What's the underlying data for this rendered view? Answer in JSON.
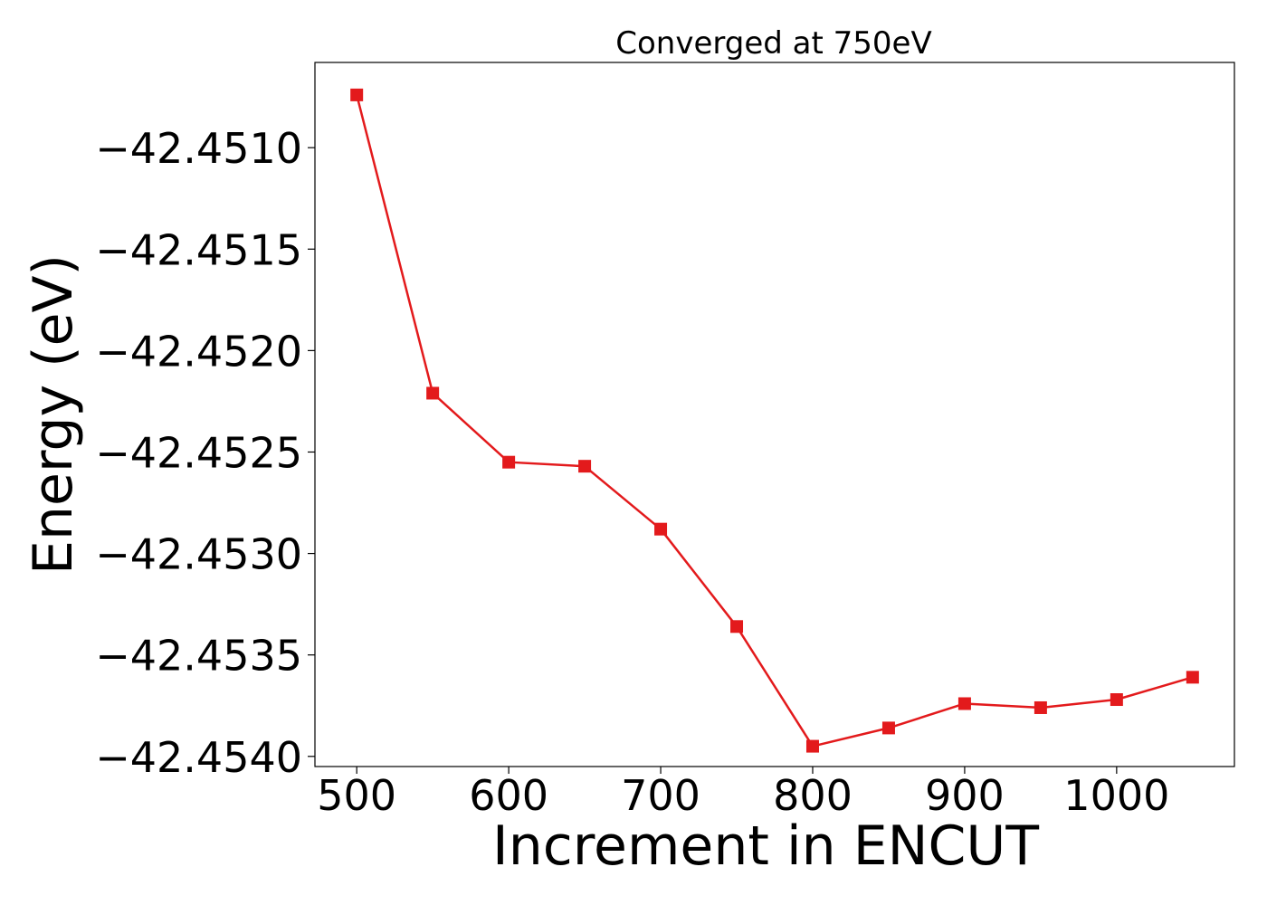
{
  "chart_data": {
    "type": "line",
    "title": "Converged at 750eV",
    "xlabel": "Increment in ENCUT",
    "ylabel": "Energy (eV)",
    "x": [
      500,
      550,
      600,
      650,
      700,
      750,
      800,
      850,
      900,
      950,
      1000,
      1050
    ],
    "series": [
      {
        "values": [
          -42.45074,
          -42.45221,
          -42.45255,
          -42.45257,
          -42.45288,
          -42.45336,
          -42.45395,
          -42.45386,
          -42.45374,
          -42.45376,
          -42.45372,
          -42.45361
        ],
        "color": "#e31a1c",
        "marker": "square"
      }
    ],
    "xticks": [
      500,
      600,
      700,
      800,
      900,
      1000
    ],
    "xtick_labels": [
      "500",
      "600",
      "700",
      "800",
      "900",
      "1000"
    ],
    "yticks": [
      -42.451,
      -42.4515,
      -42.452,
      -42.4525,
      -42.453,
      -42.4535,
      -42.454
    ],
    "ytick_labels": [
      "−42.4510",
      "−42.4515",
      "−42.4520",
      "−42.4525",
      "−42.4530",
      "−42.4535",
      "−42.4540"
    ],
    "xlim": [
      472.5,
      1077.5
    ],
    "ylim": [
      -42.45405,
      -42.45058
    ],
    "grid": false,
    "legend": "none"
  }
}
